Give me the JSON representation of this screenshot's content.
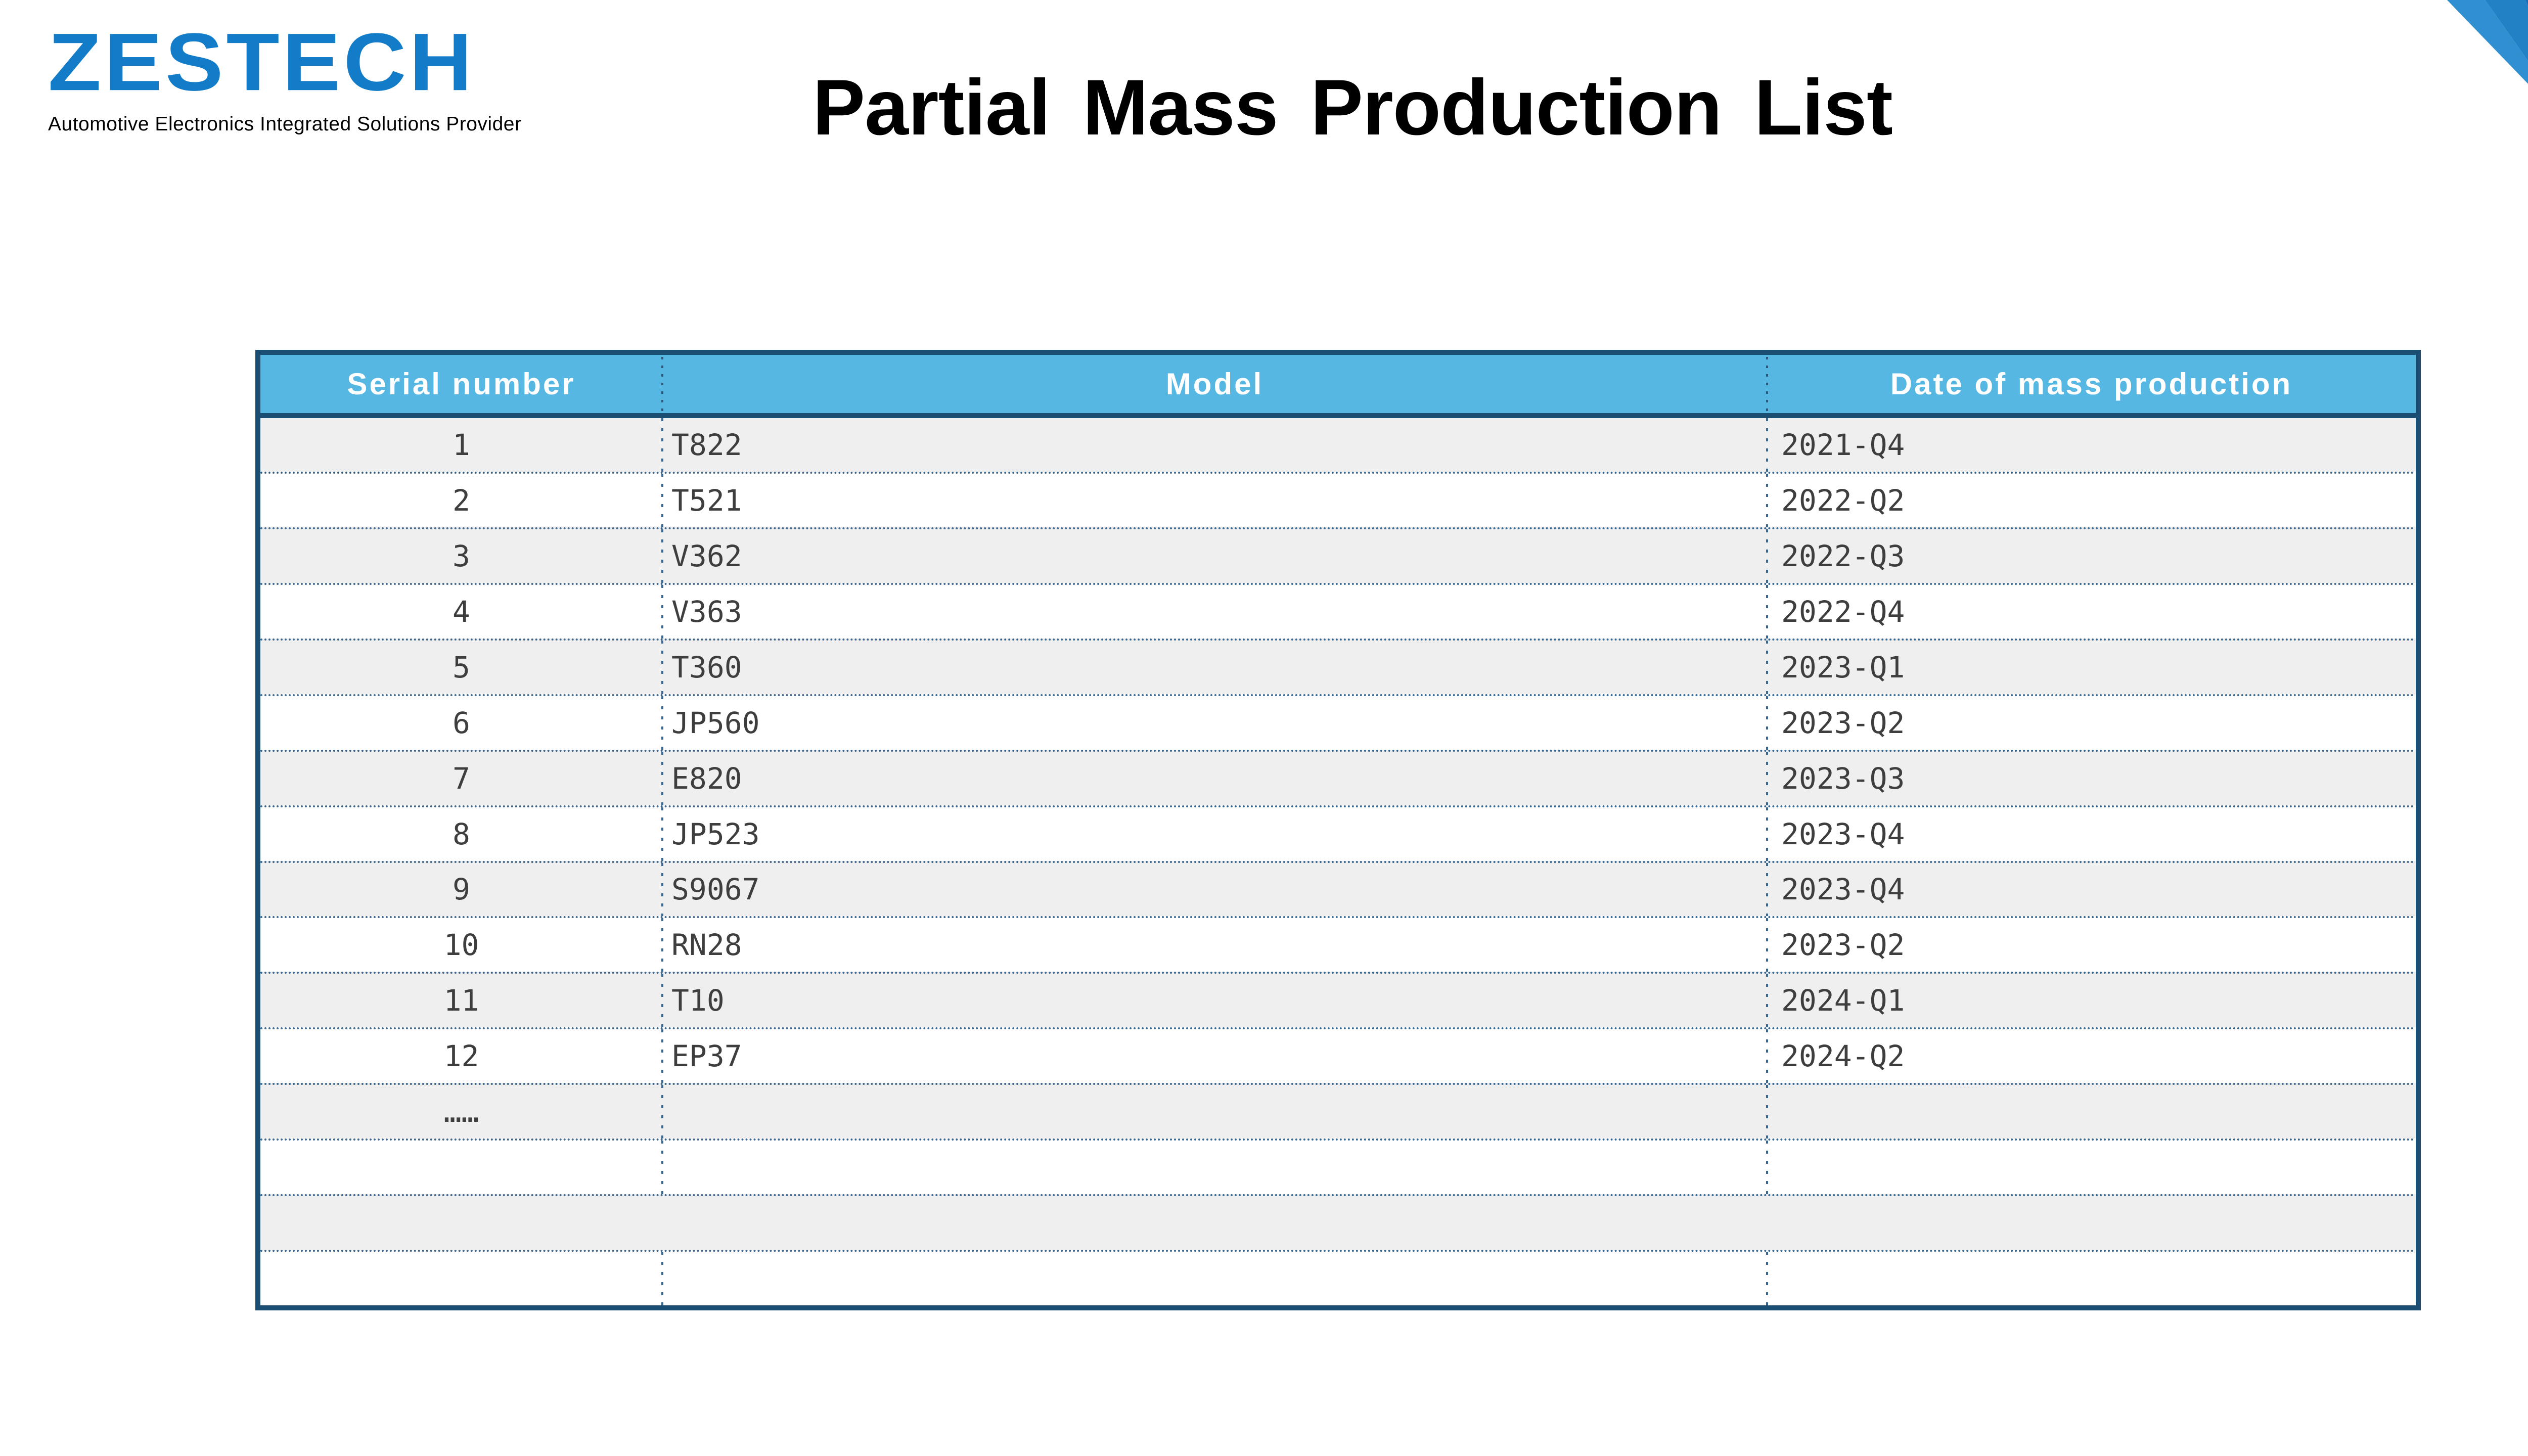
{
  "logo": {
    "brand": "ZESTECH",
    "brand_color": "#127CC9",
    "tagline": "Automotive Electronics Integrated Solutions Provider"
  },
  "title": "Partial Mass Production List",
  "corner_decoration": {
    "colors": [
      "#2F8FD1",
      "#2280C5",
      "#1A6AB4"
    ]
  },
  "table": {
    "headers": [
      "Serial number",
      "Model",
      "Date of mass production"
    ],
    "header_bg": "#57B7E3",
    "header_text_color": "#FFFFFF",
    "frame_color": "#1A4E72",
    "separator_color": "#3A6790",
    "stripe_color": "#F0EFEF",
    "rows": [
      {
        "serial": "1",
        "model": "T822",
        "date": "2021-Q4"
      },
      {
        "serial": "2",
        "model": "T521",
        "date": "2022-Q2"
      },
      {
        "serial": "3",
        "model": "V362",
        "date": "2022-Q3"
      },
      {
        "serial": "4",
        "model": "V363",
        "date": "2022-Q4"
      },
      {
        "serial": "5",
        "model": "T360",
        "date": "2023-Q1"
      },
      {
        "serial": "6",
        "model": "JP560",
        "date": "2023-Q2"
      },
      {
        "serial": "7",
        "model": "E820",
        "date": "2023-Q3"
      },
      {
        "serial": "8",
        "model": "JP523",
        "date": "2023-Q4"
      },
      {
        "serial": "9",
        "model": "S9067",
        "date": "2023-Q4"
      },
      {
        "serial": "10",
        "model": "RN28",
        "date": "2023-Q2"
      },
      {
        "serial": "11",
        "model": "T10",
        "date": "2024-Q1"
      },
      {
        "serial": "12",
        "model": "EP37",
        "date": "2024-Q2"
      },
      {
        "serial": "……",
        "model": "",
        "date": ""
      },
      {
        "serial": "",
        "model": "",
        "date": ""
      },
      {
        "serial": "",
        "model": "",
        "date": "",
        "merged": true
      },
      {
        "serial": "",
        "model": "",
        "date": ""
      }
    ]
  }
}
